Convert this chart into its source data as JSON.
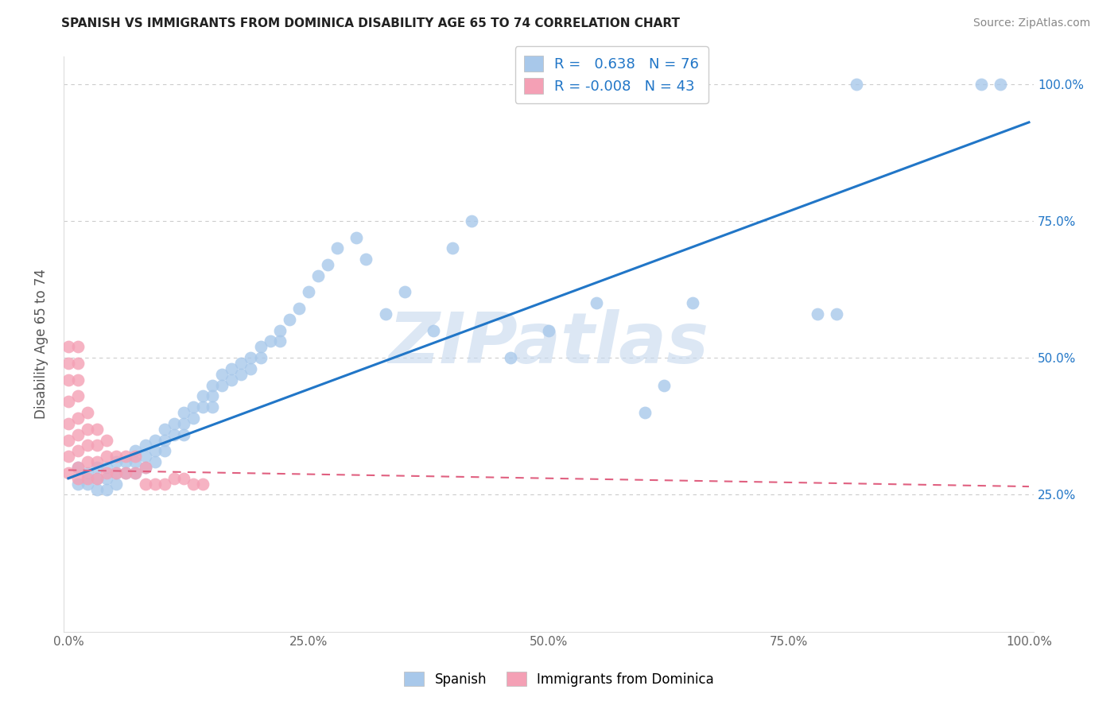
{
  "title": "SPANISH VS IMMIGRANTS FROM DOMINICA DISABILITY AGE 65 TO 74 CORRELATION CHART",
  "source": "Source: ZipAtlas.com",
  "ylabel": "Disability Age 65 to 74",
  "spanish_R": 0.638,
  "spanish_N": 76,
  "dominica_R": -0.008,
  "dominica_N": 43,
  "spanish_color": "#a8c8ea",
  "dominica_color": "#f4a0b5",
  "spanish_line_color": "#2176c7",
  "dominica_line_color": "#e06080",
  "watermark": "ZIPatlas",
  "legend_label_spanish": "Spanish",
  "legend_label_dominica": "Immigrants from Dominica",
  "ytick_positions": [
    0.25,
    0.5,
    0.75,
    1.0
  ],
  "ytick_labels": [
    "25.0%",
    "50.0%",
    "75.0%",
    "100.0%"
  ],
  "xtick_positions": [
    0.0,
    0.25,
    0.5,
    0.75,
    1.0
  ],
  "xtick_labels": [
    "0.0%",
    "25.0%",
    "50.0%",
    "75.0%",
    "100.0%"
  ],
  "blue_line_y0": 0.28,
  "blue_line_y1": 0.93,
  "pink_line_y0": 0.295,
  "pink_line_y1": 0.265,
  "spanish_x": [
    0.01,
    0.01,
    0.02,
    0.02,
    0.03,
    0.03,
    0.03,
    0.04,
    0.04,
    0.04,
    0.05,
    0.05,
    0.05,
    0.06,
    0.06,
    0.07,
    0.07,
    0.07,
    0.08,
    0.08,
    0.08,
    0.09,
    0.09,
    0.09,
    0.1,
    0.1,
    0.1,
    0.11,
    0.11,
    0.12,
    0.12,
    0.12,
    0.13,
    0.13,
    0.14,
    0.14,
    0.15,
    0.15,
    0.15,
    0.16,
    0.16,
    0.17,
    0.17,
    0.18,
    0.18,
    0.19,
    0.19,
    0.2,
    0.2,
    0.21,
    0.22,
    0.22,
    0.23,
    0.24,
    0.25,
    0.26,
    0.27,
    0.28,
    0.3,
    0.31,
    0.33,
    0.35,
    0.38,
    0.4,
    0.42,
    0.46,
    0.5,
    0.55,
    0.6,
    0.62,
    0.65,
    0.78,
    0.8,
    0.82,
    0.95,
    0.97
  ],
  "spanish_y": [
    0.3,
    0.27,
    0.29,
    0.27,
    0.3,
    0.28,
    0.26,
    0.3,
    0.28,
    0.26,
    0.31,
    0.29,
    0.27,
    0.31,
    0.29,
    0.33,
    0.31,
    0.29,
    0.34,
    0.32,
    0.3,
    0.35,
    0.33,
    0.31,
    0.37,
    0.35,
    0.33,
    0.38,
    0.36,
    0.4,
    0.38,
    0.36,
    0.41,
    0.39,
    0.43,
    0.41,
    0.45,
    0.43,
    0.41,
    0.47,
    0.45,
    0.48,
    0.46,
    0.49,
    0.47,
    0.5,
    0.48,
    0.52,
    0.5,
    0.53,
    0.55,
    0.53,
    0.57,
    0.59,
    0.62,
    0.65,
    0.67,
    0.7,
    0.72,
    0.68,
    0.58,
    0.62,
    0.55,
    0.7,
    0.75,
    0.5,
    0.55,
    0.6,
    0.4,
    0.45,
    0.6,
    0.58,
    0.58,
    1.0,
    1.0,
    1.0
  ],
  "dominica_x": [
    0.0,
    0.0,
    0.0,
    0.0,
    0.0,
    0.0,
    0.0,
    0.0,
    0.01,
    0.01,
    0.01,
    0.01,
    0.01,
    0.01,
    0.01,
    0.01,
    0.01,
    0.02,
    0.02,
    0.02,
    0.02,
    0.02,
    0.03,
    0.03,
    0.03,
    0.03,
    0.04,
    0.04,
    0.04,
    0.05,
    0.05,
    0.06,
    0.06,
    0.07,
    0.07,
    0.08,
    0.08,
    0.09,
    0.1,
    0.11,
    0.12,
    0.13,
    0.14
  ],
  "dominica_y": [
    0.29,
    0.32,
    0.35,
    0.38,
    0.42,
    0.46,
    0.49,
    0.52,
    0.28,
    0.3,
    0.33,
    0.36,
    0.39,
    0.43,
    0.46,
    0.49,
    0.52,
    0.28,
    0.31,
    0.34,
    0.37,
    0.4,
    0.28,
    0.31,
    0.34,
    0.37,
    0.29,
    0.32,
    0.35,
    0.29,
    0.32,
    0.29,
    0.32,
    0.29,
    0.32,
    0.27,
    0.3,
    0.27,
    0.27,
    0.28,
    0.28,
    0.27,
    0.27
  ]
}
